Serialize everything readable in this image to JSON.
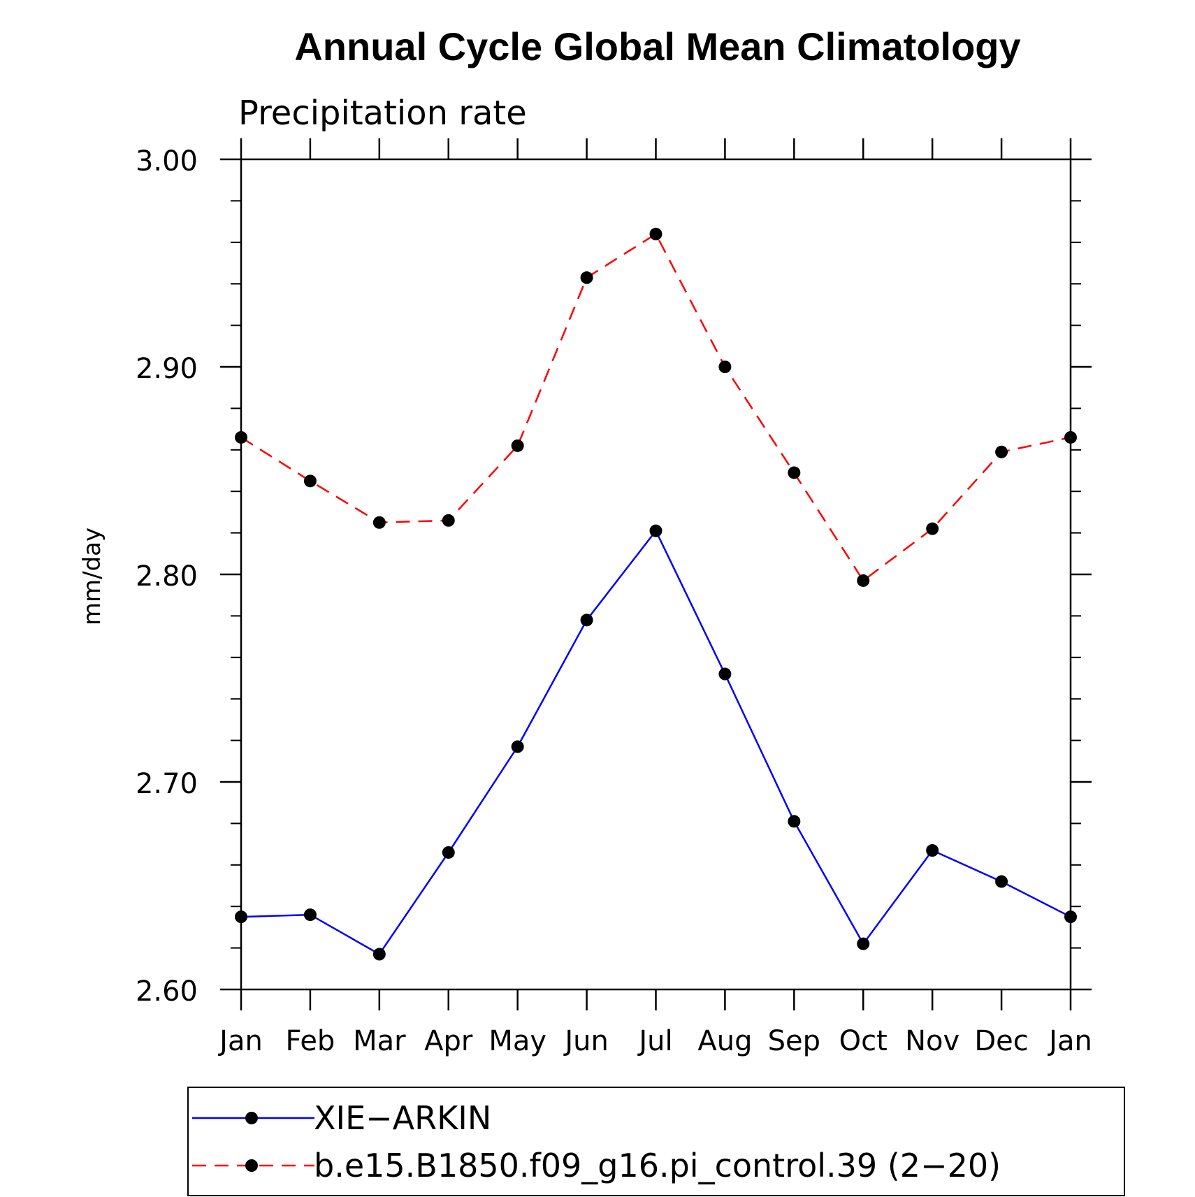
{
  "chart_data": {
    "type": "line",
    "title": "Annual Cycle Global Mean Climatology",
    "subtitle": "Precipitation rate",
    "ylabel": "mm/day",
    "xlabel": "",
    "ylim": [
      2.6,
      3.0
    ],
    "yticks": [
      "2.60",
      "2.70",
      "2.80",
      "2.90",
      "3.00"
    ],
    "categories": [
      "Jan",
      "Feb",
      "Mar",
      "Apr",
      "May",
      "Jun",
      "Jul",
      "Aug",
      "Sep",
      "Oct",
      "Nov",
      "Dec",
      "Jan"
    ],
    "series": [
      {
        "name": "XIE−ARKIN",
        "color": "#0000ff",
        "style": "solid",
        "values": [
          2.635,
          2.636,
          2.617,
          2.666,
          2.717,
          2.778,
          2.821,
          2.752,
          2.681,
          2.622,
          2.667,
          2.652,
          2.635
        ]
      },
      {
        "name": "b.e15.B1850.f09_g16.pi_control.39 (2−20)",
        "color": "#ff0000",
        "style": "dashed",
        "values": [
          2.866,
          2.845,
          2.825,
          2.826,
          2.862,
          2.943,
          2.964,
          2.9,
          2.849,
          2.797,
          2.822,
          2.859,
          2.866
        ]
      }
    ],
    "legend_position": "bottom"
  }
}
